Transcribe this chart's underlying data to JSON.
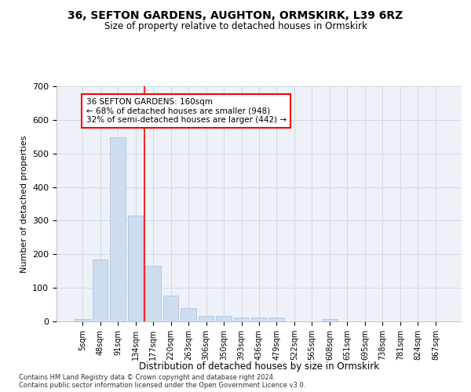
{
  "title1": "36, SEFTON GARDENS, AUGHTON, ORMSKIRK, L39 6RZ",
  "title2": "Size of property relative to detached houses in Ormskirk",
  "xlabel": "Distribution of detached houses by size in Ormskirk",
  "ylabel": "Number of detached properties",
  "categories": [
    "5sqm",
    "48sqm",
    "91sqm",
    "134sqm",
    "177sqm",
    "220sqm",
    "263sqm",
    "306sqm",
    "350sqm",
    "393sqm",
    "436sqm",
    "479sqm",
    "522sqm",
    "565sqm",
    "608sqm",
    "651sqm",
    "695sqm",
    "738sqm",
    "781sqm",
    "824sqm",
    "867sqm"
  ],
  "values": [
    8,
    185,
    548,
    315,
    165,
    77,
    40,
    17,
    17,
    12,
    12,
    12,
    0,
    0,
    8,
    0,
    0,
    0,
    0,
    0,
    0
  ],
  "bar_color": "#ccddf0",
  "bar_edge_color": "#aabbdd",
  "red_line_index": 3.5,
  "annotation_text": "36 SEFTON GARDENS: 160sqm\n← 68% of detached houses are smaller (948)\n32% of semi-detached houses are larger (442) →",
  "annotation_box_color": "white",
  "annotation_box_edge": "red",
  "ylim": [
    0,
    700
  ],
  "yticks": [
    0,
    100,
    200,
    300,
    400,
    500,
    600,
    700
  ],
  "footer1": "Contains HM Land Registry data © Crown copyright and database right 2024.",
  "footer2": "Contains public sector information licensed under the Open Government Licence v3.0.",
  "bg_color": "#eef2f8",
  "grid_color": "#d0d8e8"
}
